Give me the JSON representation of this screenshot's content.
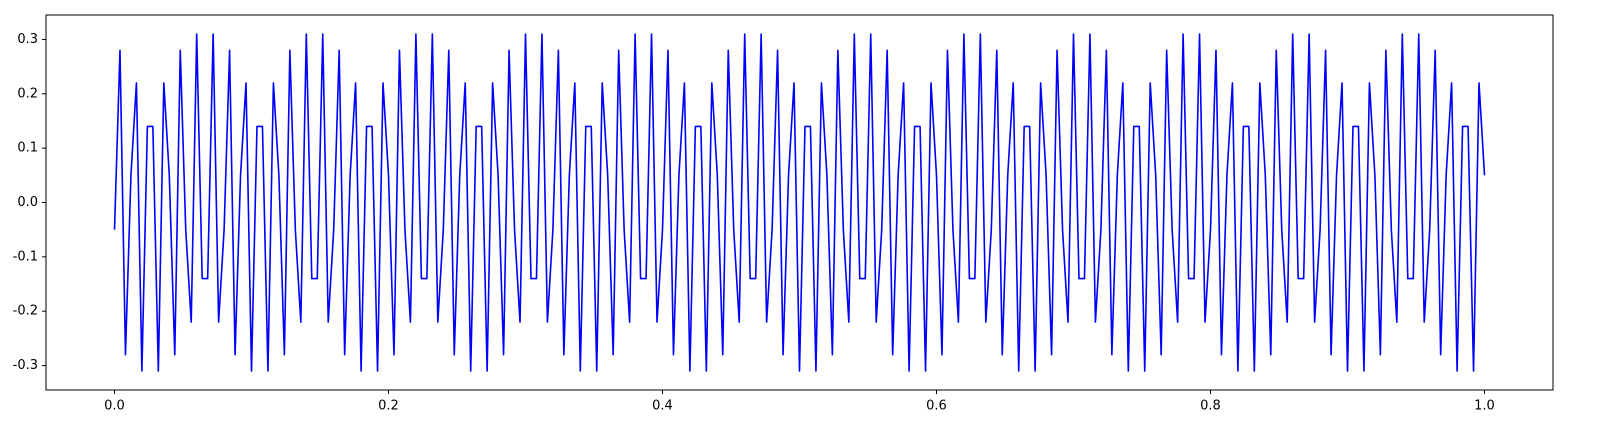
{
  "chart_data": {
    "type": "line",
    "x": [
      0,
      0.004,
      0.008,
      0.012,
      0.016,
      0.02,
      0.024,
      0.028,
      0.032,
      0.036,
      0.04,
      0.044,
      0.048,
      0.052,
      0.056,
      0.06,
      0.064,
      0.068,
      0.072,
      0.076,
      0.08,
      0.084,
      0.088,
      0.092,
      0.096,
      0.1,
      0.104,
      0.108,
      0.112,
      0.116,
      0.12,
      0.124,
      0.128,
      0.132,
      0.136,
      0.14,
      0.144,
      0.148,
      0.152,
      0.156,
      0.16,
      0.164,
      0.168,
      0.172,
      0.176,
      0.18,
      0.184,
      0.188,
      0.192,
      0.196,
      0.2,
      0.204,
      0.208,
      0.212,
      0.216,
      0.22,
      0.224,
      0.228,
      0.232,
      0.236,
      0.24,
      0.244,
      0.248,
      0.252,
      0.256,
      0.26,
      0.264,
      0.268,
      0.272,
      0.276,
      0.28,
      0.284,
      0.288,
      0.292,
      0.296,
      0.3,
      0.304,
      0.308,
      0.312,
      0.316,
      0.32,
      0.324,
      0.328,
      0.332,
      0.336,
      0.34,
      0.344,
      0.348,
      0.352,
      0.356,
      0.36,
      0.364,
      0.368,
      0.372,
      0.376,
      0.38,
      0.384,
      0.388,
      0.392,
      0.396,
      0.4,
      0.404,
      0.408,
      0.412,
      0.416,
      0.42,
      0.424,
      0.428,
      0.432,
      0.436,
      0.44,
      0.444,
      0.448,
      0.452,
      0.456,
      0.46,
      0.464,
      0.468,
      0.472,
      0.476,
      0.48,
      0.484,
      0.488,
      0.492,
      0.496,
      0.5,
      0.504,
      0.508,
      0.512,
      0.516,
      0.52,
      0.524,
      0.528,
      0.532,
      0.536,
      0.54,
      0.544,
      0.548,
      0.552,
      0.556,
      0.56,
      0.564,
      0.568,
      0.572,
      0.576,
      0.58,
      0.584,
      0.588,
      0.592,
      0.596,
      0.6,
      0.604,
      0.608,
      0.612,
      0.616,
      0.62,
      0.624,
      0.628,
      0.632,
      0.636,
      0.64,
      0.644,
      0.648,
      0.652,
      0.656,
      0.66,
      0.664,
      0.668,
      0.672,
      0.676,
      0.68,
      0.684,
      0.688,
      0.692,
      0.696,
      0.7,
      0.704,
      0.708,
      0.712,
      0.716,
      0.72,
      0.724,
      0.728,
      0.732,
      0.736,
      0.74,
      0.744,
      0.748,
      0.752,
      0.756,
      0.76,
      0.764,
      0.768,
      0.772,
      0.776,
      0.78,
      0.784,
      0.788,
      0.792,
      0.796,
      0.8,
      0.804,
      0.808,
      0.812,
      0.816,
      0.82,
      0.824,
      0.828,
      0.832,
      0.836,
      0.84,
      0.844,
      0.848,
      0.852,
      0.856,
      0.86,
      0.864,
      0.868,
      0.872,
      0.876,
      0.88,
      0.884,
      0.888,
      0.892,
      0.896,
      0.9,
      0.904,
      0.908,
      0.912,
      0.916,
      0.92,
      0.924,
      0.928,
      0.932,
      0.936,
      0.94,
      0.944,
      0.948,
      0.952,
      0.956,
      0.96,
      0.964,
      0.968,
      0.972,
      0.976,
      0.98,
      0.984,
      0.988,
      0.992,
      0.996,
      1
    ],
    "series": [
      {
        "color": "#0000ff",
        "values": [
          -0.05,
          0.28,
          -0.28,
          0.05,
          0.22,
          -0.31,
          0.14,
          0.14,
          -0.31,
          0.22,
          0.05,
          -0.28,
          0.28,
          -0.05,
          -0.22,
          0.31,
          -0.14,
          -0.14,
          0.31,
          -0.22,
          -0.05,
          0.28,
          -0.28,
          0.05,
          0.22,
          -0.31,
          0.14,
          0.14,
          -0.31,
          0.22,
          0.05,
          -0.28,
          0.28,
          -0.05,
          -0.22,
          0.31,
          -0.14,
          -0.14,
          0.31,
          -0.22,
          -0.05,
          0.28,
          -0.28,
          0.05,
          0.22,
          -0.31,
          0.14,
          0.14,
          -0.31,
          0.22,
          0.05,
          -0.28,
          0.28,
          -0.05,
          -0.22,
          0.31,
          -0.14,
          -0.14,
          0.31,
          -0.22,
          -0.05,
          0.28,
          -0.28,
          0.05,
          0.22,
          -0.31,
          0.14,
          0.14,
          -0.31,
          0.22,
          0.05,
          -0.28,
          0.28,
          -0.05,
          -0.22,
          0.31,
          -0.14,
          -0.14,
          0.31,
          -0.22,
          -0.05,
          0.28,
          -0.28,
          0.05,
          0.22,
          -0.31,
          0.14,
          0.14,
          -0.31,
          0.22,
          0.05,
          -0.28,
          0.28,
          -0.05,
          -0.22,
          0.31,
          -0.14,
          -0.14,
          0.31,
          -0.22,
          -0.05,
          0.28,
          -0.28,
          0.05,
          0.22,
          -0.31,
          0.14,
          0.14,
          -0.31,
          0.22,
          0.05,
          -0.28,
          0.28,
          -0.05,
          -0.22,
          0.31,
          -0.14,
          -0.14,
          0.31,
          -0.22,
          -0.05,
          0.28,
          -0.28,
          0.05,
          0.22,
          -0.31,
          0.14,
          0.14,
          -0.31,
          0.22,
          0.05,
          -0.28,
          0.28,
          -0.05,
          -0.22,
          0.31,
          -0.14,
          -0.14,
          0.31,
          -0.22,
          -0.05,
          0.28,
          -0.28,
          0.05,
          0.22,
          -0.31,
          0.14,
          0.14,
          -0.31,
          0.22,
          0.05,
          -0.28,
          0.28,
          -0.05,
          -0.22,
          0.31,
          -0.14,
          -0.14,
          0.31,
          -0.22,
          -0.05,
          0.28,
          -0.28,
          0.05,
          0.22,
          -0.31,
          0.14,
          0.14,
          -0.31,
          0.22,
          0.05,
          -0.28,
          0.28,
          -0.05,
          -0.22,
          0.31,
          -0.14,
          -0.14,
          0.31,
          -0.22,
          -0.05,
          0.28,
          -0.28,
          0.05,
          0.22,
          -0.31,
          0.14,
          0.14,
          -0.31,
          0.22,
          0.05,
          -0.28,
          0.28,
          -0.05,
          -0.22,
          0.31,
          -0.14,
          -0.14,
          0.31,
          -0.22,
          -0.05,
          0.28,
          -0.28,
          0.05,
          0.22,
          -0.31,
          0.14,
          0.14,
          -0.31,
          0.22,
          0.05,
          -0.28,
          0.28,
          -0.05,
          -0.22,
          0.31,
          -0.14,
          -0.14,
          0.31,
          -0.22,
          -0.05,
          0.28,
          -0.28,
          0.05,
          0.22,
          -0.31,
          0.14,
          0.14,
          -0.31,
          0.22,
          0.05,
          -0.28,
          0.28,
          -0.05,
          -0.22,
          0.31,
          -0.14,
          -0.14,
          0.31,
          -0.22,
          -0.05,
          0.28,
          -0.28,
          0.05,
          0.22,
          -0.31,
          0.14,
          0.14,
          -0.31,
          0.22,
          0.05
        ]
      }
    ],
    "xlim": [
      -0.05,
      1.05
    ],
    "xticks": [
      {
        "value": 0,
        "label": "0.0"
      },
      0.2,
      0.4,
      0.6,
      0.8,
      {
        "value": 1,
        "label": "1.0"
      }
    ],
    "ylim": [
      -0.345,
      0.345
    ],
    "yticks": [
      -0.3,
      -0.2,
      -0.1,
      {
        "value": 0,
        "label": "0.0"
      },
      0.1,
      0.2,
      0.3
    ],
    "grid": false
  }
}
